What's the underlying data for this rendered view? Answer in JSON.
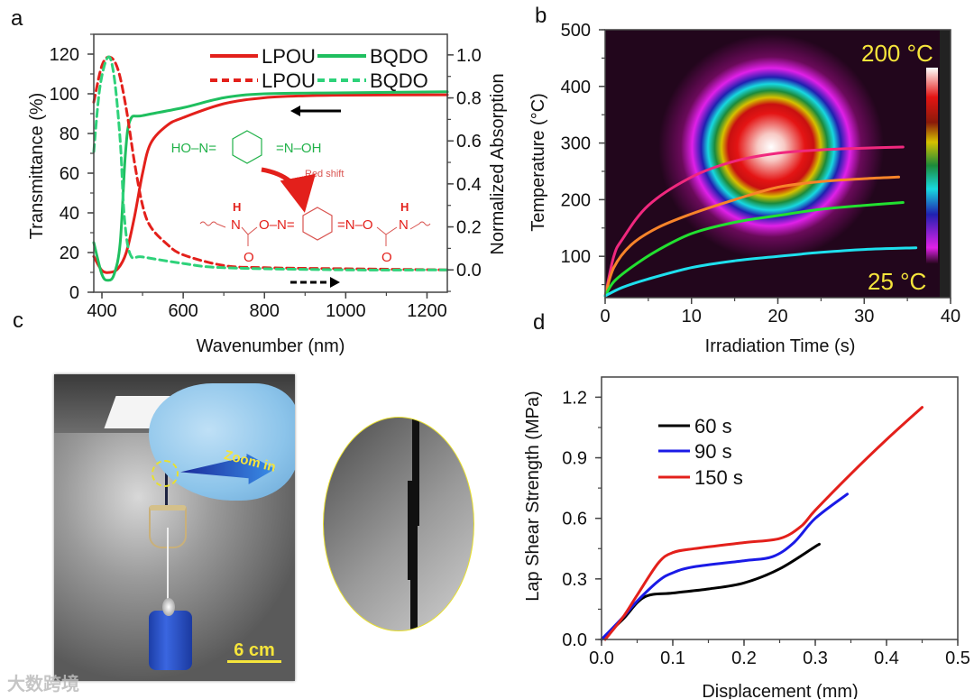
{
  "panel_letters": {
    "a": "a",
    "b": "b",
    "c": "c",
    "d": "d"
  },
  "chart_data": [
    {
      "type": "line",
      "panel": "a",
      "xlabel": "Wavenumber (nm)",
      "ylabel": "Transmittance (%)",
      "y2label": "Normalized Absorption",
      "xlim": [
        380,
        1250
      ],
      "ylim": [
        0,
        130
      ],
      "y2lim": [
        -0.104,
        1.096
      ],
      "xticks": [
        "400",
        "600",
        "800",
        "1000",
        "1200"
      ],
      "yticks": [
        "0",
        "20",
        "40",
        "60",
        "80",
        "100",
        "120"
      ],
      "y2ticks": [
        "0.0",
        "0.2",
        "0.4",
        "0.6",
        "0.8",
        "1.0"
      ],
      "series": [
        {
          "name": "LPOU",
          "style": "solid",
          "axis": "left",
          "color": "#e3201b",
          "x": [
            380,
            400,
            420,
            440,
            460,
            480,
            500,
            520,
            560,
            600,
            700,
            800,
            900,
            1000,
            1250
          ],
          "y": [
            18,
            11,
            10,
            12,
            20,
            38,
            60,
            75,
            84,
            88,
            95,
            98,
            99,
            99.3,
            99.5
          ]
        },
        {
          "name": "BQDO",
          "style": "solid",
          "axis": "left",
          "color": "#1fbf5f",
          "x": [
            380,
            400,
            415,
            430,
            445,
            458,
            470,
            500,
            600,
            700,
            800,
            1000,
            1250
          ],
          "y": [
            25,
            9,
            6,
            9,
            25,
            70,
            87,
            89,
            93,
            98,
            100,
            100.5,
            101
          ]
        },
        {
          "name": "LPOU",
          "style": "dashed",
          "axis": "right",
          "color": "#e3201b",
          "x": [
            380,
            400,
            420,
            440,
            460,
            480,
            500,
            520,
            560,
            600,
            700,
            800,
            1000,
            1250
          ],
          "y": [
            0.78,
            0.95,
            0.99,
            0.93,
            0.75,
            0.5,
            0.3,
            0.2,
            0.12,
            0.07,
            0.02,
            0.01,
            0.005,
            0.0
          ]
        },
        {
          "name": "BQDO",
          "style": "dashed",
          "axis": "right",
          "color": "#2ed27a",
          "x": [
            380,
            395,
            415,
            430,
            445,
            455,
            470,
            500,
            600,
            700,
            1000,
            1250
          ],
          "y": [
            0.55,
            0.85,
            0.99,
            0.9,
            0.6,
            0.25,
            0.07,
            0.06,
            0.03,
            0.01,
            0.0,
            0.0
          ]
        }
      ],
      "legend": "top-right",
      "annotations": {
        "green_left": "HO–N=",
        "green_right": "=N–OH",
        "red_shift": "Red shift",
        "h": "H",
        "n": "N",
        "o": "O",
        "o_n": "O–N=",
        "n_o": "=N–O"
      }
    },
    {
      "type": "line",
      "panel": "b",
      "xlabel": "Irradiation Time (s)",
      "ylabel": "Temperature (°C)",
      "xlim": [
        0,
        40
      ],
      "ylim": [
        27,
        500
      ],
      "xticks": [
        "0",
        "10",
        "20",
        "30",
        "40"
      ],
      "yticks": [
        "100",
        "200",
        "300",
        "400",
        "500"
      ],
      "series": [
        {
          "name": "pink",
          "color": "#f0287e",
          "x": [
            0,
            1,
            2,
            5,
            10,
            15,
            20,
            25,
            30,
            34.5
          ],
          "y": [
            30,
            100,
            130,
            190,
            240,
            268,
            282,
            288,
            291,
            293
          ]
        },
        {
          "name": "orange",
          "color": "#f7842a",
          "x": [
            0,
            1,
            3,
            6,
            10,
            15,
            20,
            25,
            30,
            34
          ],
          "y": [
            30,
            80,
            120,
            150,
            175,
            200,
            222,
            232,
            237,
            240
          ]
        },
        {
          "name": "green",
          "color": "#22e030",
          "x": [
            0,
            1,
            3,
            6,
            10,
            15,
            20,
            25,
            30,
            34.5
          ],
          "y": [
            30,
            55,
            80,
            110,
            140,
            160,
            172,
            183,
            190,
            195
          ]
        },
        {
          "name": "cyan",
          "color": "#1ee0ee",
          "x": [
            0,
            2,
            5,
            10,
            15,
            20,
            25,
            30,
            36
          ],
          "y": [
            30,
            45,
            60,
            80,
            92,
            100,
            107,
            112,
            115
          ]
        }
      ],
      "colorbar": {
        "max_label": "200 °C",
        "min_label": "25 °C"
      }
    },
    {
      "type": "line",
      "panel": "d",
      "xlabel": "Displacement (mm)",
      "ylabel": "Lap Shear Strength (MPa)",
      "xlim": [
        0,
        0.5
      ],
      "ylim": [
        0,
        1.3
      ],
      "xticks": [
        "0.0",
        "0.1",
        "0.2",
        "0.3",
        "0.4",
        "0.5"
      ],
      "yticks": [
        "0.0",
        "0.3",
        "0.6",
        "0.9",
        "1.2"
      ],
      "series": [
        {
          "name": "60 s",
          "color": "#000000",
          "x": [
            0,
            0.03,
            0.06,
            0.1,
            0.15,
            0.2,
            0.25,
            0.3,
            0.305
          ],
          "y": [
            0,
            0.1,
            0.21,
            0.23,
            0.25,
            0.28,
            0.35,
            0.46,
            0.47
          ]
        },
        {
          "name": "90 s",
          "color": "#1a1ae6",
          "x": [
            0,
            0.03,
            0.05,
            0.08,
            0.1,
            0.13,
            0.2,
            0.24,
            0.27,
            0.3,
            0.345
          ],
          "y": [
            0,
            0.11,
            0.19,
            0.29,
            0.33,
            0.36,
            0.39,
            0.41,
            0.48,
            0.6,
            0.72
          ]
        },
        {
          "name": "150 s",
          "color": "#e3201b",
          "x": [
            0.005,
            0.03,
            0.05,
            0.08,
            0.1,
            0.13,
            0.2,
            0.25,
            0.28,
            0.3,
            0.35,
            0.4,
            0.45
          ],
          "y": [
            0,
            0.11,
            0.22,
            0.38,
            0.43,
            0.45,
            0.48,
            0.5,
            0.56,
            0.64,
            0.82,
            0.99,
            1.15
          ]
        }
      ],
      "legend": "top-left"
    }
  ],
  "photo": {
    "zoom_label": "Zoom in",
    "scale_label": "6 cm",
    "watermark": "大数跨境"
  }
}
